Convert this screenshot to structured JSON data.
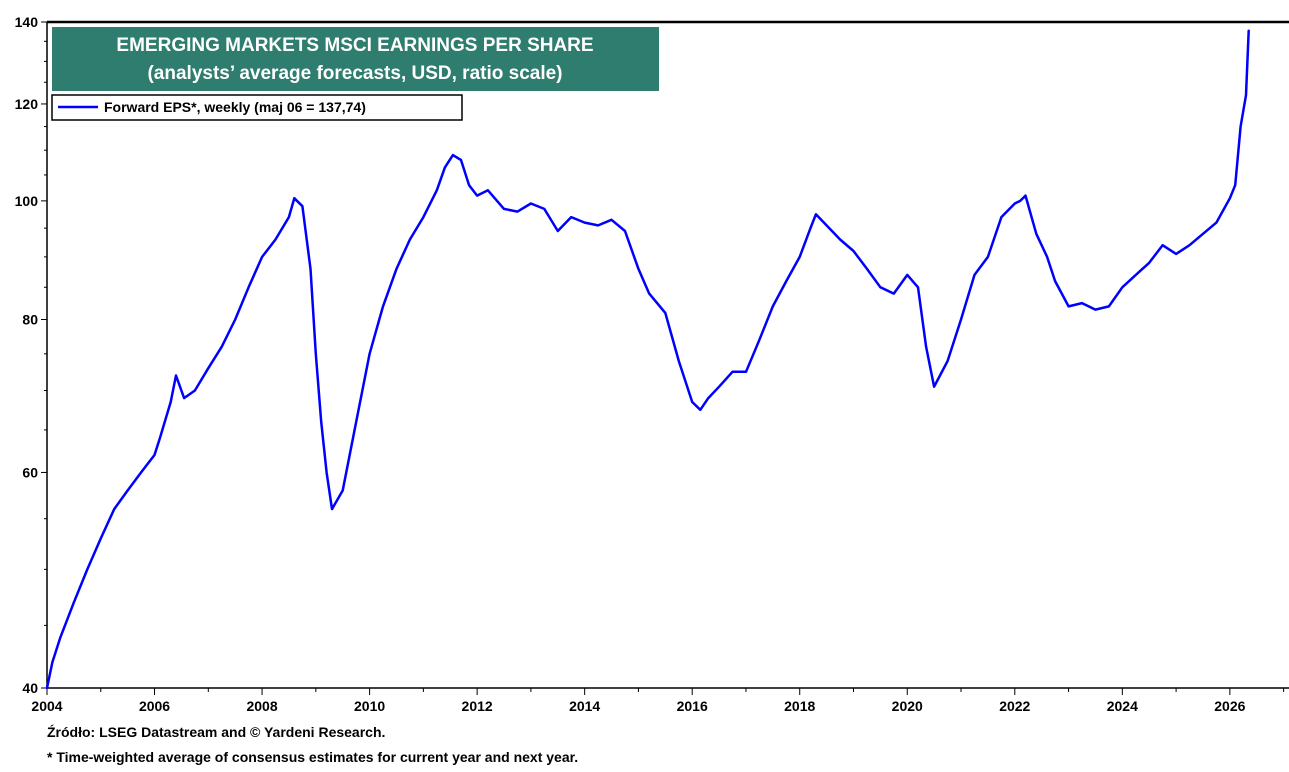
{
  "chart_data": {
    "type": "line",
    "title": "EMERGING MARKETS MSCI EARNINGS PER SHARE",
    "subtitle": "(analysts’ average forecasts, USD, ratio scale)",
    "y_scale": "log",
    "ylim": [
      40,
      140
    ],
    "xlim": [
      2004.0,
      2027.1
    ],
    "y_ticks": [
      40,
      60,
      80,
      100,
      120,
      140
    ],
    "y_tick_labels": [
      "40",
      "60",
      "80",
      "100",
      "120",
      "140"
    ],
    "x_ticks": [
      2004,
      2006,
      2008,
      2010,
      2012,
      2014,
      2016,
      2018,
      2020,
      2022,
      2024,
      2026
    ],
    "x_tick_labels": [
      "2004",
      "2006",
      "2008",
      "2010",
      "2012",
      "2014",
      "2016",
      "2018",
      "2020",
      "2022",
      "2024",
      "2026"
    ],
    "grid": false,
    "legend_position": "top-left",
    "series": [
      {
        "name": "Forward EPS*, weekly (maj 06 = 137,74)",
        "color": "#0000ff",
        "x": [
          2004.0,
          2004.1,
          2004.25,
          2004.5,
          2004.75,
          2005.0,
          2005.25,
          2005.5,
          2005.75,
          2006.0,
          2006.1,
          2006.3,
          2006.4,
          2006.55,
          2006.75,
          2007.0,
          2007.25,
          2007.5,
          2007.75,
          2008.0,
          2008.25,
          2008.5,
          2008.6,
          2008.75,
          2008.9,
          2009.0,
          2009.1,
          2009.2,
          2009.3,
          2009.5,
          2009.75,
          2010.0,
          2010.25,
          2010.5,
          2010.75,
          2011.0,
          2011.25,
          2011.4,
          2011.55,
          2011.7,
          2011.85,
          2012.0,
          2012.2,
          2012.5,
          2012.75,
          2013.0,
          2013.25,
          2013.5,
          2013.75,
          2014.0,
          2014.25,
          2014.5,
          2014.75,
          2015.0,
          2015.2,
          2015.5,
          2015.75,
          2016.0,
          2016.15,
          2016.3,
          2016.5,
          2016.75,
          2017.0,
          2017.25,
          2017.5,
          2017.75,
          2018.0,
          2018.2,
          2018.3,
          2018.5,
          2018.75,
          2019.0,
          2019.25,
          2019.5,
          2019.75,
          2020.0,
          2020.2,
          2020.35,
          2020.5,
          2020.75,
          2021.0,
          2021.25,
          2021.5,
          2021.75,
          2022.0,
          2022.1,
          2022.2,
          2022.4,
          2022.6,
          2022.75,
          2023.0,
          2023.25,
          2023.5,
          2023.75,
          2024.0,
          2024.25,
          2024.5,
          2024.75,
          2025.0,
          2025.25,
          2025.5,
          2025.75,
          2026.0,
          2026.1,
          2026.2,
          2026.3,
          2026.35
        ],
        "values": [
          40.0,
          42.0,
          44.0,
          47.0,
          50.0,
          53.0,
          56.0,
          58.0,
          60.0,
          62.0,
          64.0,
          68.5,
          72.0,
          69.0,
          70.0,
          73.0,
          76.0,
          80.0,
          85.0,
          90.0,
          93.0,
          97.0,
          100.5,
          99.0,
          88.0,
          75.0,
          66.0,
          60.0,
          56.0,
          58.0,
          66.0,
          75.0,
          82.0,
          88.0,
          93.0,
          97.0,
          102.0,
          106.5,
          109.0,
          108.0,
          103.0,
          101.0,
          102.0,
          98.5,
          98.0,
          99.5,
          98.5,
          94.5,
          97.0,
          96.0,
          95.5,
          96.5,
          94.5,
          88.0,
          84.0,
          81.0,
          74.0,
          68.5,
          67.5,
          69.0,
          70.5,
          72.5,
          72.5,
          77.0,
          82.0,
          86.0,
          90.0,
          95.0,
          97.5,
          95.5,
          93.0,
          91.0,
          88.0,
          85.0,
          84.0,
          87.0,
          85.0,
          76.0,
          70.5,
          74.0,
          80.0,
          87.0,
          90.0,
          97.0,
          99.5,
          100.0,
          101.0,
          94.0,
          90.0,
          86.0,
          82.0,
          82.5,
          81.5,
          82.0,
          85.0,
          87.0,
          89.0,
          92.0,
          90.5,
          92.0,
          94.0,
          96.0,
          100.5,
          103.0,
          115.0,
          122.0,
          137.74
        ]
      }
    ]
  },
  "footnotes": {
    "source": "Źródło: LSEG Datastream and © Yardeni Research.",
    "note": "* Time-weighted average of consensus estimates for current year and next year."
  }
}
